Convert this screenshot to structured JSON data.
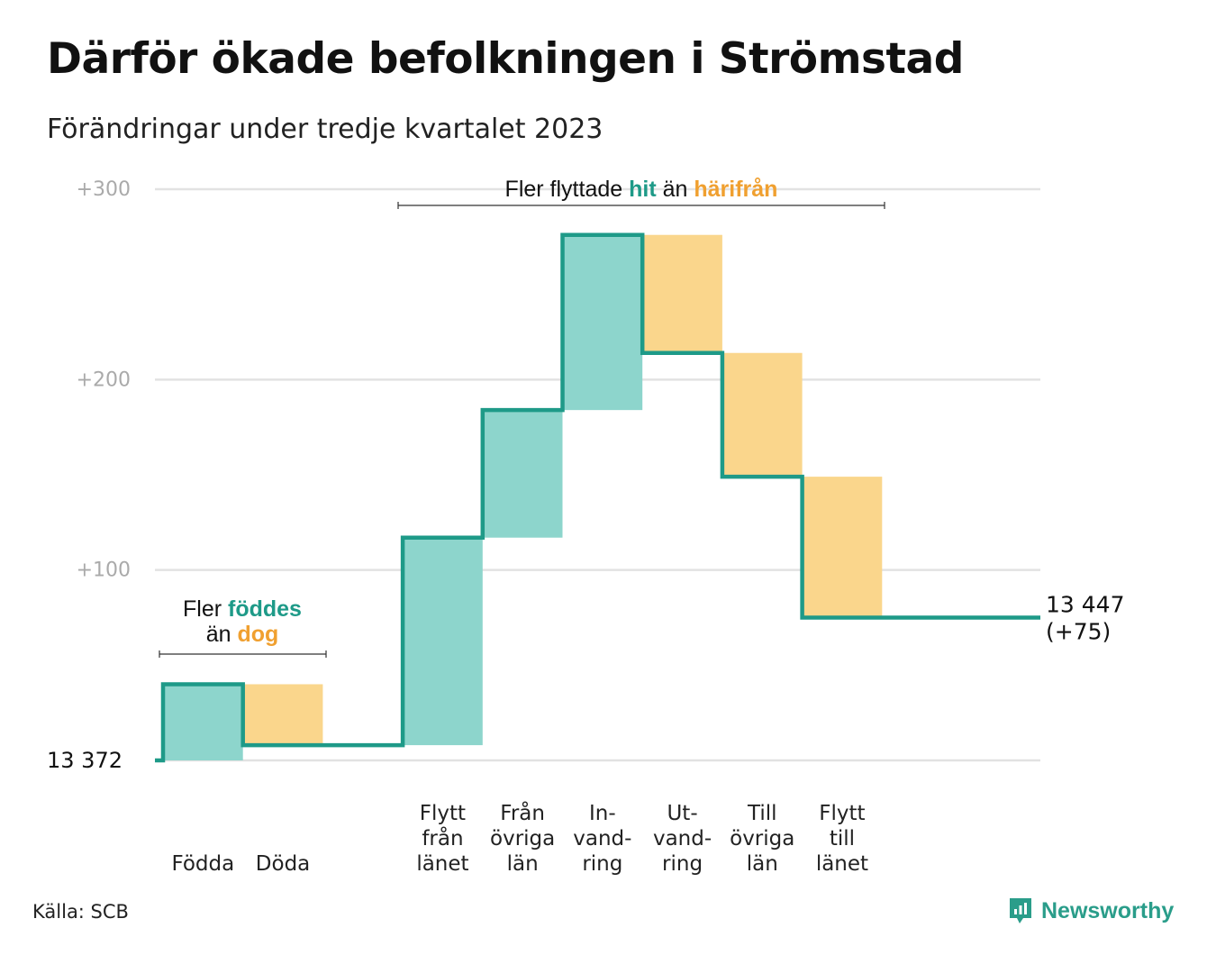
{
  "title": "Därför ökade befolkningen i Strömstad",
  "subtitle": "Förändringar under tredje kvartalet 2023",
  "source": "Källa: SCB",
  "brand": {
    "name": "Newsworthy",
    "logo_icon": "chart-speech-bubble-icon"
  },
  "colors": {
    "line": "#1e9a88",
    "increase_fill": "#8dd5cc",
    "decrease_fill": "#fad68c",
    "grid": "#e2e2e2",
    "tick_text": "#aaaaaa",
    "annotation_green": "#1e9a88",
    "annotation_orange": "#f0a030"
  },
  "annotations": {
    "births": {
      "prefix": "Fler ",
      "green_word": "föddes",
      "line2_prefix": "än ",
      "orange_word": "dog"
    },
    "migration": {
      "prefix": "Fler flyttade ",
      "green_word": "hit",
      "middle": " än ",
      "orange_word": "härifrån"
    }
  },
  "chart_data": {
    "type": "waterfall",
    "baseline_population": 13372,
    "baseline_label": "13  372",
    "y_ticks": [
      {
        "value": 100,
        "label": "+100"
      },
      {
        "value": 200,
        "label": "+200"
      },
      {
        "value": 300,
        "label": "+300"
      }
    ],
    "ylim": [
      0,
      300
    ],
    "grid": true,
    "steps": [
      {
        "label": "Födda",
        "change": 40,
        "kind": "increase"
      },
      {
        "label": "Döda",
        "change": -32,
        "kind": "decrease"
      },
      {
        "label": "",
        "change": 0,
        "kind": "gap"
      },
      {
        "label": "Flytt\nfrån\nlänet",
        "change": 109,
        "kind": "increase"
      },
      {
        "label": "Från\növriga\nlän",
        "change": 67,
        "kind": "increase"
      },
      {
        "label": "In-\nvand-\nring",
        "change": 92,
        "kind": "increase"
      },
      {
        "label": "Ut-\nvand-\nring",
        "change": -62,
        "kind": "decrease"
      },
      {
        "label": "Till\növriga\nlän",
        "change": -65,
        "kind": "decrease"
      },
      {
        "label": "Flytt\ntill\nlänet",
        "change": -74,
        "kind": "decrease"
      }
    ],
    "end": {
      "value": 75,
      "population_label": "13 447",
      "change_label": "(+75)"
    }
  }
}
